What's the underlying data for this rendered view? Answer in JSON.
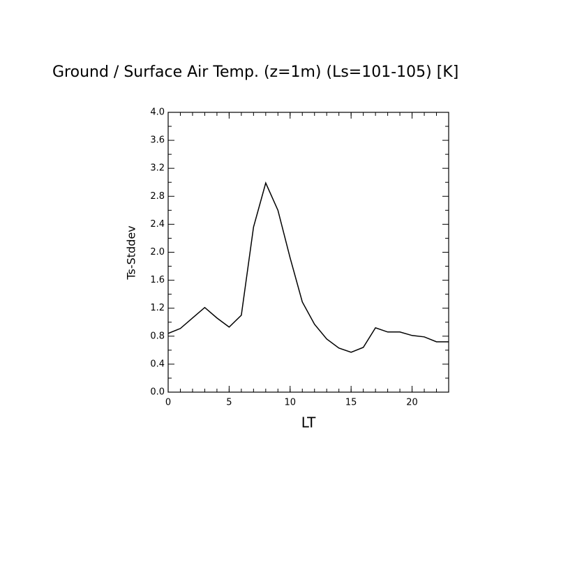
{
  "chart_data": {
    "type": "line",
    "title": "Ground / Surface Air Temp. (z=1m) (Ls=101-105) [K]",
    "x_label": "LT",
    "y_label": "Ts-Stddev",
    "x": [
      0,
      1,
      2,
      3,
      4,
      5,
      6,
      7,
      8,
      9,
      10,
      11,
      12,
      13,
      14,
      15,
      16,
      17,
      18,
      19,
      20,
      21,
      22,
      23
    ],
    "series": [
      {
        "name": "Ts-Stddev",
        "color": "#000000",
        "values": [
          0.84,
          0.91,
          1.06,
          1.21,
          1.06,
          0.93,
          1.1,
          2.36,
          2.99,
          2.6,
          1.92,
          1.29,
          0.97,
          0.76,
          0.63,
          0.57,
          0.64,
          0.92,
          0.86,
          0.86,
          0.81,
          0.79,
          0.72,
          0.72
        ]
      }
    ],
    "xlim": [
      0,
      23
    ],
    "xticks": [
      0,
      5,
      10,
      15,
      20
    ],
    "ylim": [
      0,
      4
    ],
    "yticks": [
      {
        "value": 0,
        "label": "0.0"
      },
      {
        "value": 0.4,
        "label": "0.4"
      },
      {
        "value": 0.8,
        "label": "0.8"
      },
      {
        "value": 1.2,
        "label": "1.2"
      },
      {
        "value": 1.6,
        "label": "1.6"
      },
      {
        "value": 2,
        "label": "2.0"
      },
      {
        "value": 2.4,
        "label": "2.4"
      },
      {
        "value": 2.8,
        "label": "2.8"
      },
      {
        "value": 3.2,
        "label": "3.2"
      },
      {
        "value": 3.6,
        "label": "3.6"
      },
      {
        "value": 4,
        "label": "4.0"
      }
    ]
  }
}
